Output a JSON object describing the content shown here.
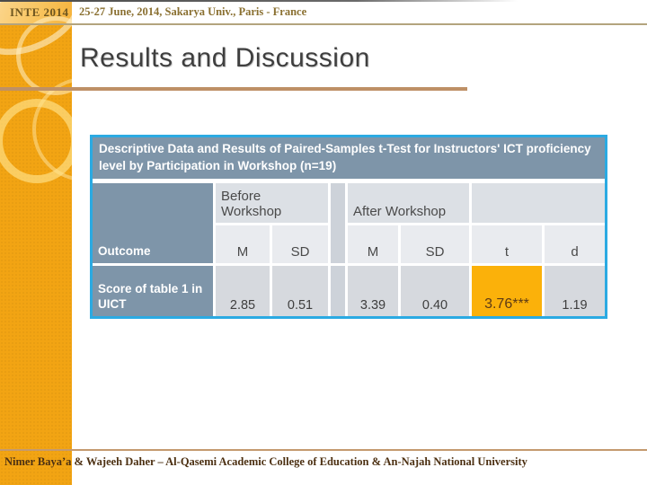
{
  "slide": {
    "conference_badge": "INTE 2014",
    "conference_info": "25-27 June, 2014, Sakarya Univ., Paris - France",
    "title": "Results and Discussion",
    "footer": "Nimer Baya’a & Wajeeh Daher  – Al-Qasemi Academic College of Education  & An-Najah National University"
  },
  "table": {
    "caption": "Descriptive Data and Results of Paired-Samples t-Test for Instructors' ICT proficiency level by Participation in Workshop (n=19)",
    "group_headers": {
      "before": "Before Workshop",
      "after": "After Workshop"
    },
    "row_header_label": "Outcome",
    "col_headers": [
      "M",
      "SD",
      "M",
      "SD",
      "t",
      "d"
    ],
    "rows": [
      {
        "outcome": "Score of table 1 in UICT",
        "before_m": "2.85",
        "before_sd": "0.51",
        "after_m": "3.39",
        "after_sd": "0.40",
        "t": "3.76***",
        "d": "1.19"
      }
    ],
    "highlight_note": "t value cell highlighted"
  },
  "colors": {
    "strip_orange": "#F2A413",
    "slate_header": "#7E95A9",
    "table_border_blue": "#2BAAE2",
    "highlight_orange": "#FBB10A",
    "title_rule_tan": "#BE9066"
  }
}
